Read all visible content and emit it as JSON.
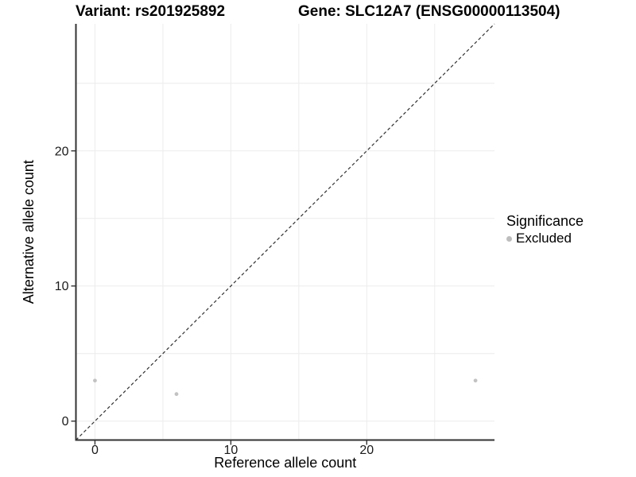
{
  "header": {
    "variant_title": "Variant: rs201925892",
    "gene_title": "Gene: SLC12A7 (ENSG00000113504)"
  },
  "chart_data": {
    "type": "scatter",
    "title_left": "Variant: rs201925892",
    "title_right": "Gene: SLC12A7 (ENSG00000113504)",
    "xlabel": "Reference allele count",
    "ylabel": "Alternative allele count",
    "xlim": [
      -1.4,
      29.4
    ],
    "ylim": [
      -1.4,
      29.4
    ],
    "x_ticks": [
      0,
      10,
      20
    ],
    "y_ticks": [
      0,
      10,
      20
    ],
    "grid_x": [
      0,
      5,
      10,
      15,
      20,
      25
    ],
    "grid_y": [
      0,
      5,
      10,
      15,
      20,
      25
    ],
    "grid_on": true,
    "grid_color": "#ececec",
    "axis_color": "#333333",
    "text_color": "#1a1a1a",
    "identity_line": {
      "slope": 1,
      "intercept": 0,
      "style": "dashed",
      "color": "#303030"
    },
    "series": [
      {
        "name": "Excluded",
        "color": "#c2c2c2",
        "points": [
          {
            "x": 0,
            "y": 3
          },
          {
            "x": 6,
            "y": 2
          },
          {
            "x": 28,
            "y": 3
          }
        ]
      }
    ],
    "legend": {
      "title": "Significance",
      "position": "right",
      "items": [
        {
          "label": "Excluded",
          "color": "#bdbdbd"
        }
      ]
    }
  }
}
